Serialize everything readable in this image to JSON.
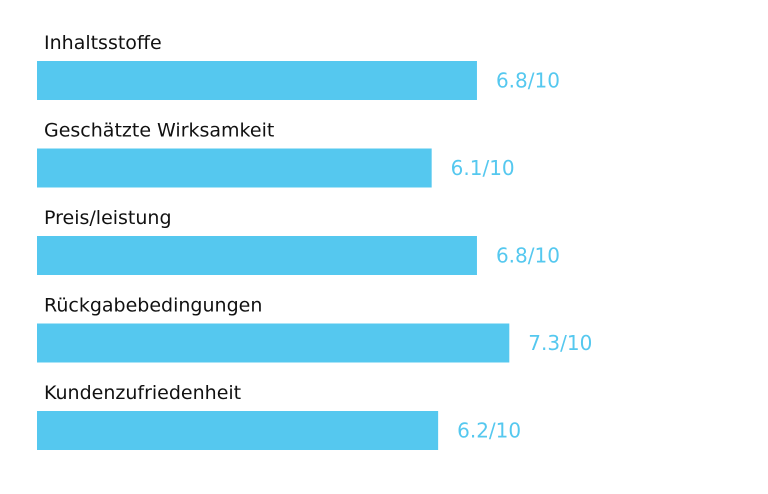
{
  "chart_data": {
    "type": "bar",
    "orientation": "horizontal",
    "categories": [
      "Inhaltsstoffe",
      "Geschätzte Wirksamkeit",
      "Preis/leistung",
      "Rückgabebedingungen",
      "Kundenzufriedenheit"
    ],
    "values": [
      6.8,
      6.1,
      6.8,
      7.3,
      6.2
    ],
    "value_labels": [
      "6.8/10",
      "6.1/10",
      "6.8/10",
      "7.3/10",
      "6.2/10"
    ],
    "xlim": [
      0,
      10
    ],
    "grid": false,
    "colors": {
      "bar": "#55c8ef",
      "value_text": "#55c8ef",
      "label_text": "#111111"
    }
  }
}
